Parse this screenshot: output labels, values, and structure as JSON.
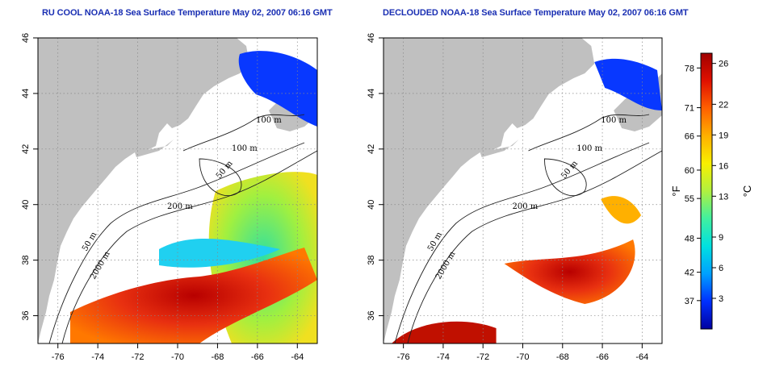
{
  "panels": [
    {
      "id": "left",
      "title": "RU COOL NOAA-18 Sea Surface Temperature May 02, 2007 06:16 GMT"
    },
    {
      "id": "right",
      "title": "DECLOUDED NOAA-18 Sea Surface Temperature May 02, 2007 06:16 GMT"
    }
  ],
  "map": {
    "lon_range": [
      -77,
      -63
    ],
    "lat_range": [
      35,
      46
    ],
    "x_ticks": [
      "-76",
      "-74",
      "-72",
      "-70",
      "-68",
      "-66",
      "-64"
    ],
    "y_ticks": [
      "36",
      "38",
      "40",
      "42",
      "44",
      "46"
    ],
    "grid": "dotted",
    "land_color": "#c0c0c0",
    "contour_labels": [
      "100 m",
      "100 m",
      "50 m",
      "200 m",
      "50 m",
      "2000 m"
    ]
  },
  "colorbar": {
    "f_ticks": [
      "78",
      "71",
      "66",
      "60",
      "55",
      "48",
      "42",
      "37"
    ],
    "c_ticks": [
      "26",
      "22",
      "19",
      "16",
      "13",
      "9",
      "6",
      "3"
    ],
    "f_label": "°F",
    "c_label": "°C",
    "colors": [
      "#0000a0",
      "#0030ff",
      "#00a0ff",
      "#00e0e0",
      "#40f0a0",
      "#b0f040",
      "#f8f000",
      "#ffb000",
      "#ff6000",
      "#e01000",
      "#a00000"
    ]
  }
}
